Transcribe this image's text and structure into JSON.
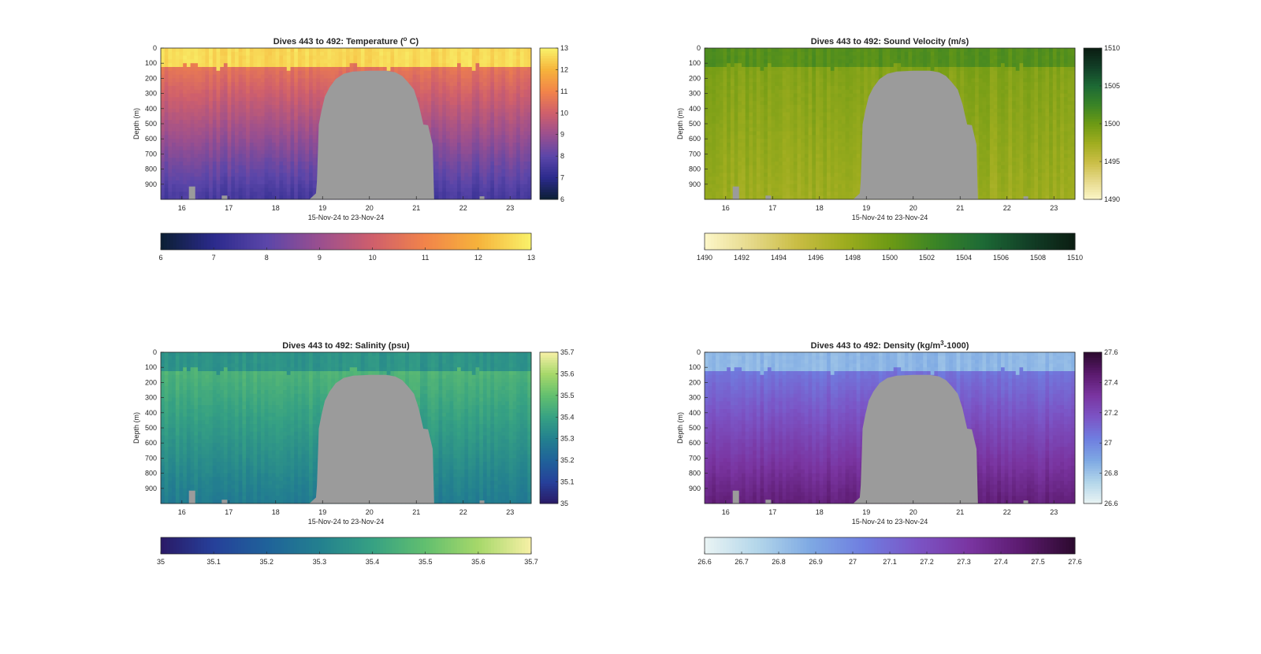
{
  "figure": {
    "background": "#ffffff",
    "nodata_color": "#9b9b9b"
  },
  "chart_data": [
    {
      "type": "heatmap",
      "title": "Dives 443 to 492: Temperature (",
      "title_sup": "o",
      "title_suffix": " C)",
      "variable": "temperature",
      "xlabel": "15-Nov-24 to 23-Nov-24",
      "ylabel": "Depth (m)",
      "x_ticks": [
        "16",
        "17",
        "18",
        "19",
        "20",
        "21",
        "22",
        "23"
      ],
      "y_ticks": [
        "0",
        "100",
        "200",
        "300",
        "400",
        "500",
        "600",
        "700",
        "800",
        "900"
      ],
      "xlim": [
        15.55,
        23.45
      ],
      "ylim": [
        0,
        1000
      ],
      "clim": [
        6,
        13
      ],
      "side_colorbar_ticks": [
        "6",
        "7",
        "8",
        "9",
        "10",
        "11",
        "12",
        "13"
      ],
      "bottom_colorbar_ticks": [
        "6",
        "7",
        "8",
        "9",
        "10",
        "11",
        "12",
        "13"
      ],
      "colormap": [
        "#0b1f33",
        "#2b2a8c",
        "#5b46a9",
        "#9a4f8f",
        "#cf5f6c",
        "#f2844a",
        "#f6b33b",
        "#f9f26a"
      ],
      "surface_value": 12.6,
      "thermocline_value": 10.6,
      "deep_value": 7.6,
      "grid": false
    },
    {
      "type": "heatmap",
      "title": "Dives 443 to 492: Sound Velocity (m/s)",
      "title_sup": "",
      "title_suffix": "",
      "variable": "sound_velocity",
      "xlabel": "15-Nov-24 to 23-Nov-24",
      "ylabel": "Depth (m)",
      "x_ticks": [
        "16",
        "17",
        "18",
        "19",
        "20",
        "21",
        "22",
        "23"
      ],
      "y_ticks": [
        "0",
        "100",
        "200",
        "300",
        "400",
        "500",
        "600",
        "700",
        "800",
        "900"
      ],
      "xlim": [
        15.55,
        23.45
      ],
      "ylim": [
        0,
        1000
      ],
      "clim": [
        1490,
        1510
      ],
      "side_colorbar_ticks": [
        "1490",
        "1495",
        "1500",
        "1505",
        "1510"
      ],
      "bottom_colorbar_ticks": [
        "1490",
        "1492",
        "1494",
        "1496",
        "1498",
        "1500",
        "1502",
        "1504",
        "1506",
        "1508",
        "1510"
      ],
      "colormap": [
        "#fdf7c9",
        "#e6d98a",
        "#c9bd44",
        "#9fad1f",
        "#6d9a14",
        "#3a8426",
        "#1d6a35",
        "#123f27",
        "#0b1d12"
      ],
      "surface_value": 1501.2,
      "thermocline_value": 1499.0,
      "deep_value": 1497.6,
      "grid": false
    },
    {
      "type": "heatmap",
      "title": "Dives 443 to 492: Salinity (psu)",
      "title_sup": "",
      "title_suffix": "",
      "variable": "salinity",
      "xlabel": "15-Nov-24 to 23-Nov-24",
      "ylabel": "Depth (m)",
      "x_ticks": [
        "16",
        "17",
        "18",
        "19",
        "20",
        "21",
        "22",
        "23"
      ],
      "y_ticks": [
        "0",
        "100",
        "200",
        "300",
        "400",
        "500",
        "600",
        "700",
        "800",
        "900"
      ],
      "xlim": [
        15.55,
        23.45
      ],
      "ylim": [
        0,
        1000
      ],
      "clim": [
        35,
        35.7
      ],
      "side_colorbar_ticks": [
        "35",
        "35.1",
        "35.2",
        "35.3",
        "35.4",
        "35.5",
        "35.6",
        "35.7"
      ],
      "bottom_colorbar_ticks": [
        "35",
        "35.1",
        "35.2",
        "35.3",
        "35.4",
        "35.5",
        "35.6",
        "35.7"
      ],
      "colormap": [
        "#2a1a66",
        "#26409a",
        "#1f629a",
        "#23808f",
        "#36a183",
        "#62bf6f",
        "#a6d86a",
        "#f7f0a6"
      ],
      "surface_value": 35.36,
      "thermocline_value": 35.46,
      "deep_value": 35.29,
      "grid": false
    },
    {
      "type": "heatmap",
      "title": "Dives 443 to 492: Density (kg/m",
      "title_sup": "3",
      "title_suffix": "-1000)",
      "variable": "density",
      "xlabel": "15-Nov-24 to 23-Nov-24",
      "ylabel": "Depth (m)",
      "x_ticks": [
        "16",
        "17",
        "18",
        "19",
        "20",
        "21",
        "22",
        "23"
      ],
      "y_ticks": [
        "0",
        "100",
        "200",
        "300",
        "400",
        "500",
        "600",
        "700",
        "800",
        "900"
      ],
      "xlim": [
        15.55,
        23.45
      ],
      "ylim": [
        0,
        1000
      ],
      "clim": [
        26.6,
        27.6
      ],
      "side_colorbar_ticks": [
        "26.6",
        "26.8",
        "27",
        "27.2",
        "27.4",
        "27.6"
      ],
      "side_colorbar_tick_values": [
        26.6,
        26.8,
        27.0,
        27.2,
        27.4,
        27.6
      ],
      "bottom_colorbar_ticks": [
        "26.6",
        "26.7",
        "26.8",
        "26.9",
        "27",
        "27.1",
        "27.2",
        "27.3",
        "27.4",
        "27.5",
        "27.6"
      ],
      "colormap": [
        "#eaf4f4",
        "#b3d6ea",
        "#7ea9e3",
        "#6f7ee0",
        "#7b55c6",
        "#7a35a1",
        "#5b1a6e",
        "#2c0a2e"
      ],
      "surface_value": 26.84,
      "thermocline_value": 27.06,
      "deep_value": 27.42,
      "grid": false
    }
  ]
}
